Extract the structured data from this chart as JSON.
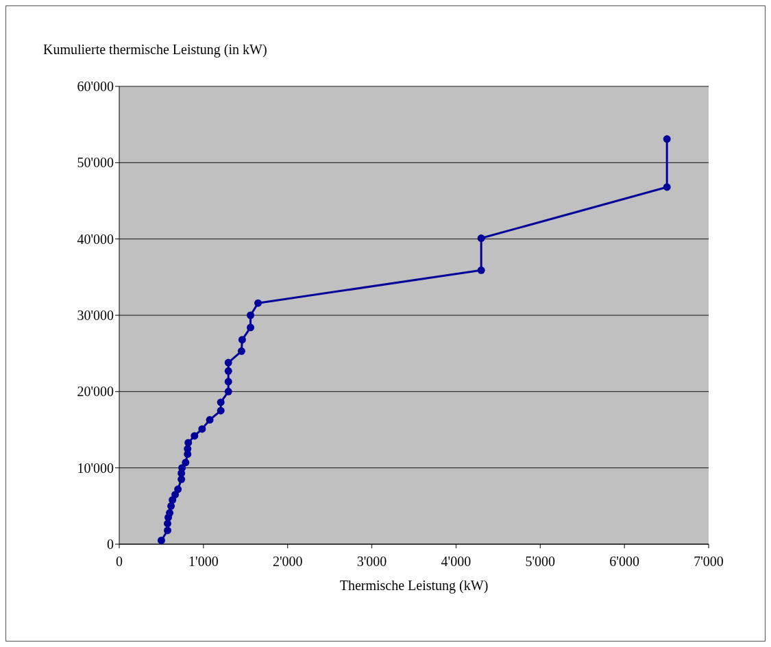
{
  "chart_data": {
    "type": "line",
    "ylabel": "Kumulierte thermische Leistung (in kW)",
    "xlabel": "Thermische Leistung (kW)",
    "x": [
      500,
      574,
      574,
      582,
      599,
      615,
      632,
      664,
      697,
      738,
      738,
      746,
      788,
      812,
      812,
      820,
      894,
      984,
      1075,
      1206,
      1206,
      1296,
      1296,
      1296,
      1296,
      1452,
      1460,
      1559,
      1559,
      1649,
      4299,
      4299,
      6505,
      6505
    ],
    "series": [
      {
        "color": "#000099",
        "values": [
          500,
          1800,
          2700,
          3500,
          4100,
          5000,
          5800,
          6500,
          7200,
          8500,
          9300,
          10000,
          10700,
          11800,
          12500,
          13300,
          14200,
          15100,
          16300,
          17500,
          18600,
          20000,
          21300,
          22700,
          23800,
          25300,
          26800,
          28400,
          30000,
          31600,
          35900,
          40100,
          46800,
          53100
        ]
      }
    ],
    "xlim": [
      0,
      7000
    ],
    "xticks": [
      0,
      {
        "value": 1000,
        "label": "1'000"
      },
      {
        "value": 2000,
        "label": "2'000"
      },
      {
        "value": 3000,
        "label": "3'000"
      },
      {
        "value": 4000,
        "label": "4'000"
      },
      {
        "value": 5000,
        "label": "5'000"
      },
      {
        "value": 6000,
        "label": "6'000"
      },
      {
        "value": 7000,
        "label": "7'000"
      }
    ],
    "ylim": [
      0,
      60000
    ],
    "yticks": [
      0,
      {
        "value": 10000,
        "label": "10'000"
      },
      {
        "value": 20000,
        "label": "20'000"
      },
      {
        "value": 30000,
        "label": "30'000"
      },
      {
        "value": 40000,
        "label": "40'000"
      },
      {
        "value": 50000,
        "label": "50'000"
      },
      {
        "value": 60000,
        "label": "60'000"
      }
    ],
    "grid": "y",
    "marker": "circle",
    "line_style": "solid",
    "legend": false
  }
}
